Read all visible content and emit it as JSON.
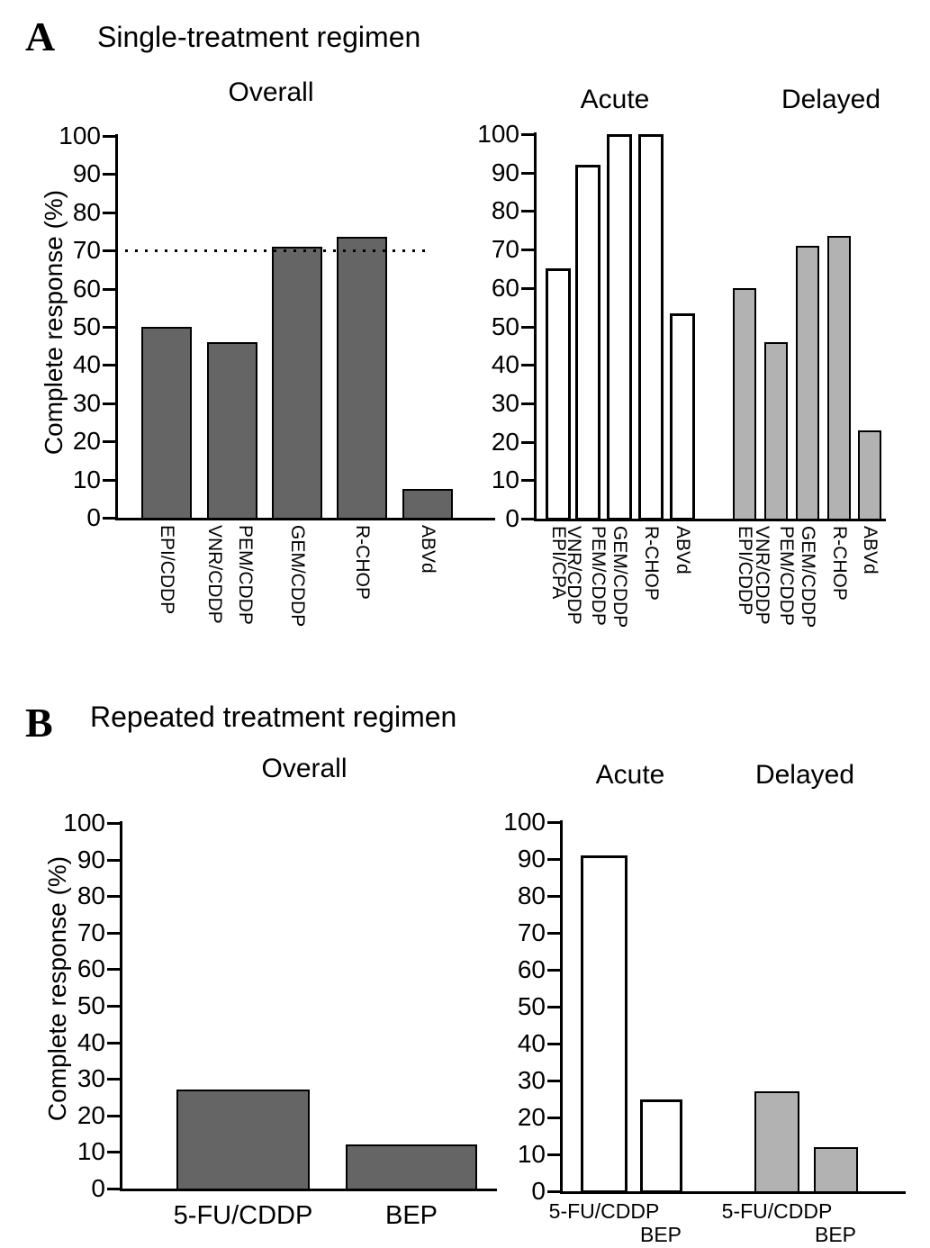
{
  "panels": [
    {
      "letter": "A",
      "title": "Single-treatment regimen"
    },
    {
      "letter": "B",
      "title": "Repeated treatment regimen"
    }
  ],
  "colors": {
    "dark_bar": "#656565",
    "light_bar": "#b2b2b2",
    "white_bar": "#ffffff",
    "axis": "#000000",
    "background": "#ffffff"
  },
  "chart_data": [
    {
      "type": "bar",
      "panel": "A",
      "title": "Overall",
      "ylabel": "Complete response (%)",
      "ylim": [
        0,
        100
      ],
      "ytick_interval": 10,
      "grid": false,
      "reference_line_y": 70,
      "bar_style": "dark-gray",
      "bars": [
        {
          "labels": [
            "EPI/CDDP"
          ],
          "value": 50
        },
        {
          "labels": [
            "VNR/CDDP",
            "PEM/CDDP"
          ],
          "value": 46
        },
        {
          "labels": [
            "GEM/CDDP"
          ],
          "value": 71
        },
        {
          "labels": [
            "R-CHOP"
          ],
          "value": 73.5
        },
        {
          "labels": [
            "ABVd"
          ],
          "value": 7.5
        }
      ]
    },
    {
      "type": "bar",
      "panel": "A",
      "title": "Acute",
      "ylim": [
        0,
        100
      ],
      "ytick_interval": 10,
      "grid": false,
      "bar_style": "white",
      "bars": [
        {
          "labels": [
            "EPI/CPA"
          ],
          "value": 65
        },
        {
          "labels": [
            "VNR/CDDP",
            "PEM/CDDP"
          ],
          "value": 92
        },
        {
          "labels": [
            "GEM/CDDP"
          ],
          "value": 100
        },
        {
          "labels": [
            "R-CHOP"
          ],
          "value": 100
        },
        {
          "labels": [
            "ABVd"
          ],
          "value": 53.5
        }
      ]
    },
    {
      "type": "bar",
      "panel": "A",
      "title": "Delayed",
      "ylim": [
        0,
        100
      ],
      "ytick_interval": 10,
      "grid": false,
      "bar_style": "light-gray",
      "bars": [
        {
          "labels": [
            "EPI/CDDP"
          ],
          "value": 60
        },
        {
          "labels": [
            "VNR/CDDP",
            "PEM/CDDP"
          ],
          "value": 46
        },
        {
          "labels": [
            "GEM/CDDP"
          ],
          "value": 71
        },
        {
          "labels": [
            "R-CHOP"
          ],
          "value": 73.5
        },
        {
          "labels": [
            "ABVd"
          ],
          "value": 23
        }
      ]
    },
    {
      "type": "bar",
      "panel": "B",
      "title": "Overall",
      "ylabel": "Complete response (%)",
      "ylim": [
        0,
        100
      ],
      "ytick_interval": 10,
      "grid": false,
      "bar_style": "dark-gray",
      "bars": [
        {
          "labels": [
            "5-FU/CDDP"
          ],
          "value": 27
        },
        {
          "labels": [
            "BEP"
          ],
          "value": 12
        }
      ]
    },
    {
      "type": "bar",
      "panel": "B",
      "title": "Acute",
      "ylim": [
        0,
        100
      ],
      "ytick_interval": 10,
      "grid": false,
      "bar_style": "white",
      "bars": [
        {
          "labels": [
            "5-FU/CDDP"
          ],
          "value": 91
        },
        {
          "labels": [
            "BEP"
          ],
          "value": 25
        }
      ]
    },
    {
      "type": "bar",
      "panel": "B",
      "title": "Delayed",
      "ylim": [
        0,
        100
      ],
      "ytick_interval": 10,
      "grid": false,
      "bar_style": "light-gray",
      "bars": [
        {
          "labels": [
            "5-FU/CDDP"
          ],
          "value": 27
        },
        {
          "labels": [
            "BEP"
          ],
          "value": 12
        }
      ]
    }
  ]
}
